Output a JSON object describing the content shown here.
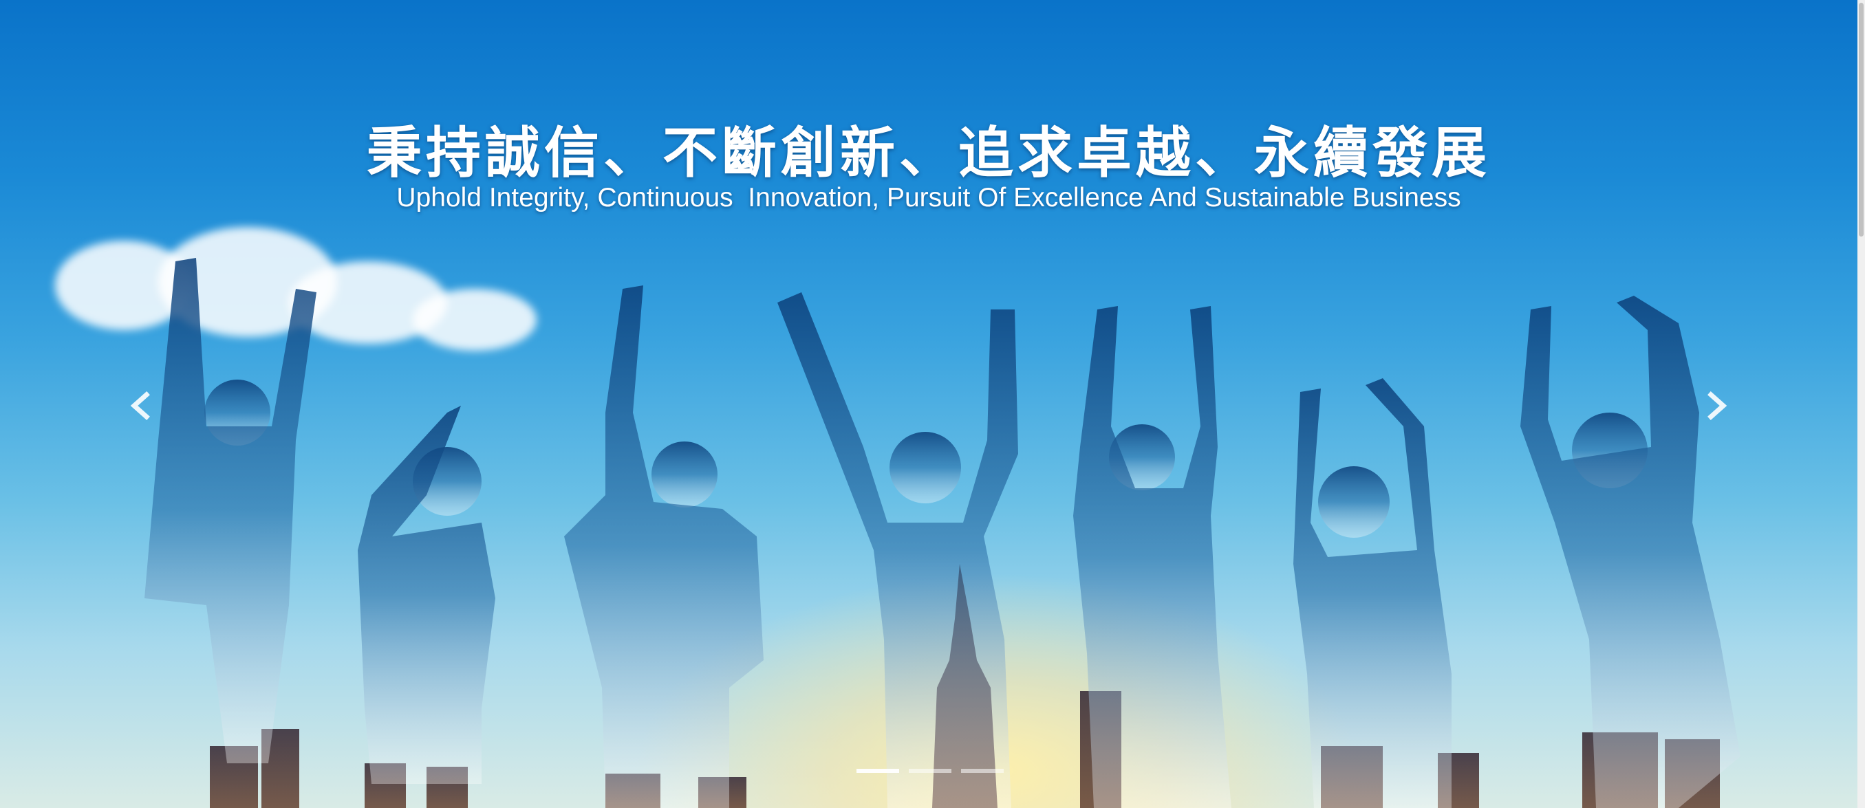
{
  "banner": {
    "headline_zh": "秉持誠信、不斷創新、追求卓越、永續發展",
    "headline_en": "Uphold Integrity, Continuous  Innovation, Pursuit Of Excellence And Sustainable Business"
  },
  "carousel": {
    "prev_icon": "chevron-left-icon",
    "next_icon": "chevron-right-icon",
    "slide_count": 3,
    "active_index": 0
  },
  "colors": {
    "sky_top": "#0a73c9",
    "sky_bottom": "#d9ebe6",
    "text": "#ffffff"
  }
}
